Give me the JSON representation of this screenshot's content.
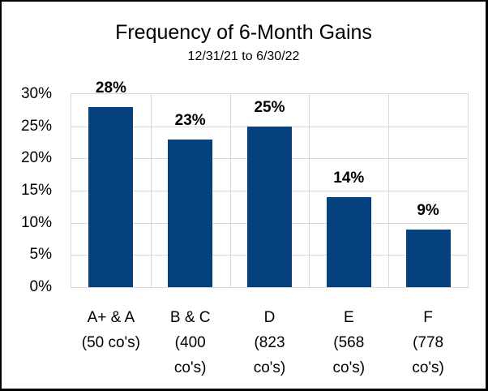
{
  "chart": {
    "colors": {
      "bar": "#04417E",
      "gridline": "#D9D9D9",
      "text": "#000000",
      "frame_border": "#000000",
      "background": "#FFFFFF"
    }
  },
  "chart_data": {
    "type": "bar",
    "title": "Frequency of 6-Month Gains",
    "subtitle": "12/31/21 to 6/30/22",
    "categories": [
      "A+ & A (50 co's)",
      "B & C (400 co's)",
      "D (823 co's)",
      "E (568 co's)",
      "F (778 co's)"
    ],
    "category_label_lines": [
      [
        "A+ & A",
        "(50 co's)"
      ],
      [
        "B & C",
        "(400",
        "co's)"
      ],
      [
        "D",
        "(823",
        "co's)"
      ],
      [
        "E",
        "(568",
        "co's)"
      ],
      [
        "F",
        "(778",
        "co's)"
      ]
    ],
    "values": [
      28,
      23,
      25,
      14,
      9
    ],
    "data_labels": [
      "28%",
      "23%",
      "25%",
      "14%",
      "9%"
    ],
    "xlabel": "",
    "ylabel": "",
    "ylim": [
      0,
      30
    ],
    "ytick_step": 5,
    "ytick_labels": [
      "0%",
      "5%",
      "10%",
      "15%",
      "20%",
      "25%",
      "30%"
    ],
    "grid": "horizontal gridlines at 5% intervals plus vertical category separators",
    "legend": "none",
    "data_label_position": "outside-end-bold"
  }
}
